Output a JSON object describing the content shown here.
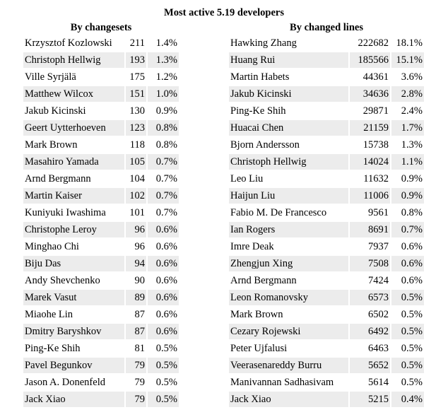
{
  "title": "Most active 5.19 developers",
  "by_changesets": {
    "heading": "By changesets",
    "rows": [
      [
        "Krzysztof Kozlowski",
        "211",
        "1.4%"
      ],
      [
        "Christoph Hellwig",
        "193",
        "1.3%"
      ],
      [
        "Ville Syrjälä",
        "175",
        "1.2%"
      ],
      [
        "Matthew Wilcox",
        "151",
        "1.0%"
      ],
      [
        "Jakub Kicinski",
        "130",
        "0.9%"
      ],
      [
        "Geert Uytterhoeven",
        "123",
        "0.8%"
      ],
      [
        "Mark Brown",
        "118",
        "0.8%"
      ],
      [
        "Masahiro Yamada",
        "105",
        "0.7%"
      ],
      [
        "Arnd Bergmann",
        "104",
        "0.7%"
      ],
      [
        "Martin Kaiser",
        "102",
        "0.7%"
      ],
      [
        "Kuniyuki Iwashima",
        "101",
        "0.7%"
      ],
      [
        "Christophe Leroy",
        "96",
        "0.6%"
      ],
      [
        "Minghao Chi",
        "96",
        "0.6%"
      ],
      [
        "Biju Das",
        "94",
        "0.6%"
      ],
      [
        "Andy Shevchenko",
        "90",
        "0.6%"
      ],
      [
        "Marek Vasut",
        "89",
        "0.6%"
      ],
      [
        "Miaohe Lin",
        "87",
        "0.6%"
      ],
      [
        "Dmitry Baryshkov",
        "87",
        "0.6%"
      ],
      [
        "Ping-Ke Shih",
        "81",
        "0.5%"
      ],
      [
        "Pavel Begunkov",
        "79",
        "0.5%"
      ],
      [
        "Jason A. Donenfeld",
        "79",
        "0.5%"
      ],
      [
        "Jack Xiao",
        "79",
        "0.5%"
      ]
    ]
  },
  "by_changed_lines": {
    "heading": "By changed lines",
    "rows": [
      [
        "Hawking Zhang",
        "222682",
        "18.1%"
      ],
      [
        "Huang Rui",
        "185566",
        "15.1%"
      ],
      [
        "Martin Habets",
        "44361",
        "3.6%"
      ],
      [
        "Jakub Kicinski",
        "34636",
        "2.8%"
      ],
      [
        "Ping-Ke Shih",
        "29871",
        "2.4%"
      ],
      [
        "Huacai Chen",
        "21159",
        "1.7%"
      ],
      [
        "Bjorn Andersson",
        "15738",
        "1.3%"
      ],
      [
        "Christoph Hellwig",
        "14024",
        "1.1%"
      ],
      [
        "Leo Liu",
        "11632",
        "0.9%"
      ],
      [
        "Haijun Liu",
        "11006",
        "0.9%"
      ],
      [
        "Fabio M. De Francesco",
        "9561",
        "0.8%"
      ],
      [
        "Ian Rogers",
        "8691",
        "0.7%"
      ],
      [
        "Imre Deak",
        "7937",
        "0.6%"
      ],
      [
        "Zhengjun Xing",
        "7508",
        "0.6%"
      ],
      [
        "Arnd Bergmann",
        "7424",
        "0.6%"
      ],
      [
        "Leon Romanovsky",
        "6573",
        "0.5%"
      ],
      [
        "Mark Brown",
        "6502",
        "0.5%"
      ],
      [
        "Cezary Rojewski",
        "6492",
        "0.5%"
      ],
      [
        "Peter Ujfalusi",
        "6463",
        "0.5%"
      ],
      [
        "Veerasenareddy Burru",
        "5652",
        "0.5%"
      ],
      [
        "Manivannan Sadhasivam",
        "5614",
        "0.5%"
      ],
      [
        "Jack Xiao",
        "5215",
        "0.4%"
      ]
    ]
  }
}
